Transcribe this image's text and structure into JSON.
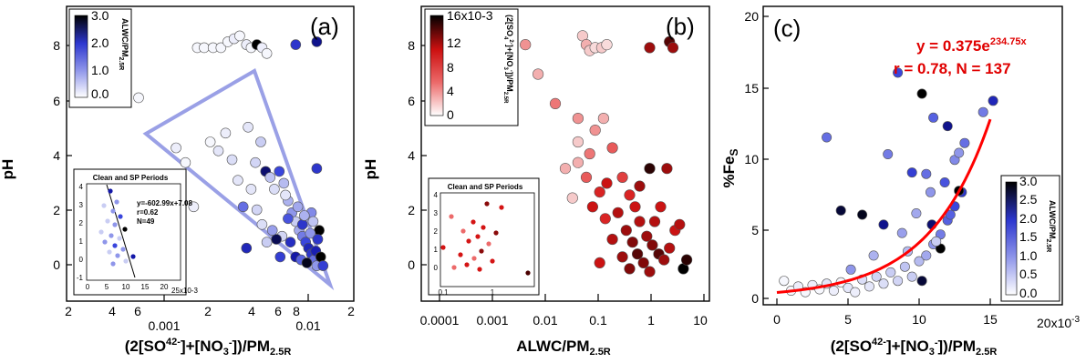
{
  "colors": {
    "blue_scale": [
      "#ffffff",
      "#c9cdf3",
      "#8f96ea",
      "#3a46dc",
      "#1317a8",
      "#000000"
    ],
    "red_scale": [
      "#ffffff",
      "#f5c6c6",
      "#ec6a6a",
      "#d41414",
      "#8a0a0a",
      "#000000"
    ],
    "fit_line": "#ff0000",
    "envelope": "#9aa0e6"
  },
  "panel_a": {
    "letter": "(a)",
    "ylabel": "pH",
    "xlabel": "(2[SO4 2-]+[NO3 -])/PM2.5R",
    "colorbar": {
      "label": "ALWC/PM2.5R",
      "ticks": [
        "3.0",
        "2.0",
        "1.0",
        "0.0"
      ]
    },
    "inset": {
      "title": "Clean and SP Periods",
      "fit": "y=-602.99x+7.08",
      "r": "r=0.62",
      "n": "N=49",
      "xunit": "25x10-3",
      "xticks": [
        "0",
        "5",
        "10",
        "15",
        "20"
      ],
      "yticks": [
        "4",
        "3",
        "2",
        "1",
        "0",
        "-1"
      ]
    }
  },
  "panel_b": {
    "letter": "(b)",
    "ylabel": "pH",
    "xlabel": "ALWC/PM2.5R",
    "colorbar": {
      "label": "(2[SO4 2-]+[NO3 -])/PM2.5R",
      "ticks": [
        "16x10-3",
        "12",
        "8",
        "4",
        "0"
      ]
    },
    "inset": {
      "title": "Clean and SP Periods",
      "xticks": [
        "0.1",
        "1"
      ],
      "yticks": [
        "4",
        "3",
        "2",
        "1",
        "0"
      ]
    }
  },
  "panel_c": {
    "letter": "(c)",
    "ylabel": "%FeS",
    "xlabel": "(2[SO4 2-]+[NO3 -])/PM2.5R",
    "xunit": "20x10-3",
    "fit_equation": "y = 0.375e234.75x",
    "fit_stats": "r = 0.78, N = 137",
    "colorbar": {
      "label": "ALWC/PM2.5R",
      "ticks": [
        "3.0",
        "2.5",
        "2.0",
        "1.5",
        "1.0",
        "0.5",
        "0.0"
      ]
    }
  },
  "chart_data": [
    {
      "type": "scatter",
      "panel": "a",
      "xscale": "log",
      "xlim": [
        0.0002,
        0.022
      ],
      "ylim": [
        -1.2,
        8.8
      ],
      "xticks_major": [
        "0.001",
        "0.01"
      ],
      "xticks_minor_labels": [
        "2",
        "4",
        "6",
        "2",
        "4",
        "6",
        "8",
        "2"
      ],
      "yticks": [
        "8",
        "6",
        "4",
        "2",
        "0"
      ],
      "color_variable": "ALWC/PM2.5R",
      "color_range": [
        0,
        3
      ],
      "points": [
        {
          "x": 0.0017,
          "y": 7.4,
          "c": 0.1
        },
        {
          "x": 0.0019,
          "y": 7.4,
          "c": 0.1
        },
        {
          "x": 0.0022,
          "y": 7.4,
          "c": 0.1
        },
        {
          "x": 0.0025,
          "y": 7.4,
          "c": 0.1
        },
        {
          "x": 0.0028,
          "y": 7.6,
          "c": 0.1
        },
        {
          "x": 0.0031,
          "y": 7.7,
          "c": 0.2
        },
        {
          "x": 0.0034,
          "y": 7.8,
          "c": 0.1
        },
        {
          "x": 0.0038,
          "y": 7.5,
          "c": 0.2
        },
        {
          "x": 0.0041,
          "y": 7.4,
          "c": 0.1
        },
        {
          "x": 0.0045,
          "y": 7.5,
          "c": 3.0
        },
        {
          "x": 0.0049,
          "y": 7.4,
          "c": 0.2
        },
        {
          "x": 0.0053,
          "y": 7.2,
          "c": 0.1
        },
        {
          "x": 0.0085,
          "y": 7.5,
          "c": 2.0
        },
        {
          "x": 0.012,
          "y": 7.6,
          "c": 2.5
        },
        {
          "x": 0.00065,
          "y": 5.7,
          "c": 0.1
        },
        {
          "x": 0.0012,
          "y": 4.0,
          "c": 0.2
        },
        {
          "x": 0.0014,
          "y": 3.5,
          "c": 0.1
        },
        {
          "x": 0.0016,
          "y": 2.0,
          "c": 0.2
        },
        {
          "x": 0.0021,
          "y": 4.2,
          "c": 0.1
        },
        {
          "x": 0.0024,
          "y": 3.9,
          "c": 0.3
        },
        {
          "x": 0.0027,
          "y": 4.5,
          "c": 0.2
        },
        {
          "x": 0.003,
          "y": 3.6,
          "c": 0.4
        },
        {
          "x": 0.0033,
          "y": 2.9,
          "c": 0.3
        },
        {
          "x": 0.0036,
          "y": 2.0,
          "c": 1.5
        },
        {
          "x": 0.0039,
          "y": 4.7,
          "c": 0.3
        },
        {
          "x": 0.0044,
          "y": 3.5,
          "c": 0.5
        },
        {
          "x": 0.0048,
          "y": 4.2,
          "c": 0.6
        },
        {
          "x": 0.0052,
          "y": 3.2,
          "c": 2.6
        },
        {
          "x": 0.0056,
          "y": 3.0,
          "c": 0.7
        },
        {
          "x": 0.006,
          "y": 2.6,
          "c": 0.4
        },
        {
          "x": 0.0065,
          "y": 3.2,
          "c": 1.8
        },
        {
          "x": 0.007,
          "y": 2.8,
          "c": 0.8
        },
        {
          "x": 0.0075,
          "y": 2.2,
          "c": 0.9
        },
        {
          "x": 0.008,
          "y": 1.8,
          "c": 1.2
        },
        {
          "x": 0.0085,
          "y": 1.5,
          "c": 0.6
        },
        {
          "x": 0.009,
          "y": 1.2,
          "c": 1.0
        },
        {
          "x": 0.0095,
          "y": 1.0,
          "c": 1.4
        },
        {
          "x": 0.01,
          "y": 0.8,
          "c": 1.8
        },
        {
          "x": 0.0105,
          "y": 0.6,
          "c": 2.2
        },
        {
          "x": 0.011,
          "y": 0.4,
          "c": 2.0
        },
        {
          "x": 0.0115,
          "y": 0.2,
          "c": 1.5
        },
        {
          "x": 0.012,
          "y": 0.0,
          "c": 1.2
        },
        {
          "x": 0.0125,
          "y": 1.2,
          "c": 3.0
        },
        {
          "x": 0.0085,
          "y": 0.3,
          "c": 2.4
        },
        {
          "x": 0.0095,
          "y": 1.4,
          "c": 2.0
        },
        {
          "x": 0.011,
          "y": 1.8,
          "c": 1.3
        },
        {
          "x": 0.012,
          "y": 3.3,
          "c": 2.0
        },
        {
          "x": 0.0075,
          "y": 1.6,
          "c": 1.7
        },
        {
          "x": 0.0068,
          "y": 1.0,
          "c": 0.5
        },
        {
          "x": 0.0072,
          "y": 2.4,
          "c": 0.3
        },
        {
          "x": 0.0078,
          "y": 0.8,
          "c": 2.1
        },
        {
          "x": 0.0088,
          "y": 2.0,
          "c": 1.0
        },
        {
          "x": 0.0093,
          "y": 0.2,
          "c": 1.6
        },
        {
          "x": 0.0098,
          "y": 1.7,
          "c": 0.9
        },
        {
          "x": 0.0102,
          "y": 0.1,
          "c": 2.9
        },
        {
          "x": 0.0108,
          "y": 1.1,
          "c": 1.2
        },
        {
          "x": 0.0113,
          "y": 1.5,
          "c": 0.7
        },
        {
          "x": 0.0118,
          "y": 0.5,
          "c": 2.3
        },
        {
          "x": 0.0122,
          "y": 0.9,
          "c": 2.0
        },
        {
          "x": 0.0128,
          "y": 0.3,
          "c": 3.0
        },
        {
          "x": 0.0133,
          "y": 0.0,
          "c": 1.9
        },
        {
          "x": 0.0062,
          "y": 0.9,
          "c": 2.7
        },
        {
          "x": 0.0058,
          "y": 1.2,
          "c": 1.1
        },
        {
          "x": 0.0053,
          "y": 0.8,
          "c": 0.6
        },
        {
          "x": 0.0049,
          "y": 1.4,
          "c": 0.4
        },
        {
          "x": 0.0045,
          "y": 1.9,
          "c": 0.5
        },
        {
          "x": 0.0041,
          "y": 2.6,
          "c": 0.3
        },
        {
          "x": 0.0038,
          "y": 0.6,
          "c": 2.2
        },
        {
          "x": 0.0066,
          "y": 0.3,
          "c": 1.9
        }
      ]
    },
    {
      "type": "scatter",
      "panel": "b",
      "xscale": "log",
      "xlim": [
        9e-05,
        10
      ],
      "ylim": [
        -1.2,
        8.8
      ],
      "xticks": [
        "0.0001",
        "0.001",
        "0.01",
        "0.1",
        "1",
        "10"
      ],
      "yticks": [
        "8",
        "6",
        "4",
        "2",
        "0"
      ],
      "color_variable": "(2[SO4 2-]+[NO3 -])/PM2.5R",
      "color_range": [
        0,
        0.016
      ],
      "points": [
        {
          "x": 0.002,
          "y": 7.4,
          "c": 0.01
        },
        {
          "x": 0.006,
          "y": 7.5,
          "c": 0.005
        },
        {
          "x": 0.06,
          "y": 7.8,
          "c": 0.003
        },
        {
          "x": 0.07,
          "y": 7.5,
          "c": 0.004
        },
        {
          "x": 0.08,
          "y": 7.3,
          "c": 0.003
        },
        {
          "x": 0.1,
          "y": 7.4,
          "c": 0.002
        },
        {
          "x": 0.13,
          "y": 7.4,
          "c": 0.003
        },
        {
          "x": 0.16,
          "y": 7.5,
          "c": 0.002
        },
        {
          "x": 0.9,
          "y": 7.4,
          "c": 0.012
        },
        {
          "x": 2.0,
          "y": 7.6,
          "c": 0.014
        },
        {
          "x": 2.3,
          "y": 7.4,
          "c": 0.012
        },
        {
          "x": 0.01,
          "y": 6.5,
          "c": 0.004
        },
        {
          "x": 0.02,
          "y": 5.5,
          "c": 0.006
        },
        {
          "x": 0.05,
          "y": 4.2,
          "c": 0.003
        },
        {
          "x": 0.05,
          "y": 5.0,
          "c": 0.005
        },
        {
          "x": 0.1,
          "y": 4.6,
          "c": 0.005
        },
        {
          "x": 0.14,
          "y": 5.0,
          "c": 0.004
        },
        {
          "x": 0.2,
          "y": 4.0,
          "c": 0.007
        },
        {
          "x": 0.3,
          "y": 3.0,
          "c": 0.008
        },
        {
          "x": 0.4,
          "y": 2.4,
          "c": 0.009
        },
        {
          "x": 0.5,
          "y": 2.0,
          "c": 0.01
        },
        {
          "x": 0.6,
          "y": 1.5,
          "c": 0.011
        },
        {
          "x": 0.8,
          "y": 1.0,
          "c": 0.012
        },
        {
          "x": 1.0,
          "y": 0.7,
          "c": 0.013
        },
        {
          "x": 1.3,
          "y": 0.4,
          "c": 0.014
        },
        {
          "x": 1.6,
          "y": 0.2,
          "c": 0.012
        },
        {
          "x": 2.0,
          "y": 0.6,
          "c": 0.011
        },
        {
          "x": 2.5,
          "y": 1.2,
          "c": 0.01
        },
        {
          "x": 3.0,
          "y": 1.4,
          "c": 0.011
        },
        {
          "x": 0.05,
          "y": 3.5,
          "c": 0.004
        },
        {
          "x": 0.07,
          "y": 3.0,
          "c": 0.007
        },
        {
          "x": 0.12,
          "y": 2.5,
          "c": 0.009
        },
        {
          "x": 0.16,
          "y": 2.8,
          "c": 0.01
        },
        {
          "x": 0.25,
          "y": 1.8,
          "c": 0.011
        },
        {
          "x": 0.35,
          "y": 1.2,
          "c": 0.012
        },
        {
          "x": 0.45,
          "y": 0.8,
          "c": 0.013
        },
        {
          "x": 0.55,
          "y": 0.4,
          "c": 0.014
        },
        {
          "x": 0.7,
          "y": 0.1,
          "c": 0.013
        },
        {
          "x": 0.9,
          "y": -0.2,
          "c": 0.012
        },
        {
          "x": 1.1,
          "y": 1.5,
          "c": 0.011
        },
        {
          "x": 1.4,
          "y": 2.0,
          "c": 0.01
        },
        {
          "x": 1.8,
          "y": 3.3,
          "c": 0.012
        },
        {
          "x": 3.5,
          "y": -0.1,
          "c": 0.016
        },
        {
          "x": 4.0,
          "y": 0.2,
          "c": 0.015
        },
        {
          "x": 0.9,
          "y": 3.3,
          "c": 0.015
        },
        {
          "x": 0.3,
          "y": 0.3,
          "c": 0.012
        },
        {
          "x": 0.2,
          "y": 0.9,
          "c": 0.011
        },
        {
          "x": 0.15,
          "y": 1.6,
          "c": 0.009
        },
        {
          "x": 0.09,
          "y": 2.0,
          "c": 0.01
        },
        {
          "x": 0.6,
          "y": 2.7,
          "c": 0.012
        },
        {
          "x": 0.4,
          "y": -0.1,
          "c": 0.013
        },
        {
          "x": 0.12,
          "y": 0.1,
          "c": 0.01
        },
        {
          "x": 0.04,
          "y": 2.3,
          "c": 0.003
        },
        {
          "x": 0.03,
          "y": 3.3,
          "c": 0.004
        },
        {
          "x": 0.08,
          "y": 3.8,
          "c": 0.006
        }
      ]
    },
    {
      "type": "scatter",
      "panel": "c",
      "xlim": [
        0,
        0.02
      ],
      "ylim": [
        -0.5,
        20
      ],
      "xticks": [
        "0",
        "5",
        "10",
        "15"
      ],
      "yticks": [
        "20",
        "15",
        "10",
        "5",
        "0"
      ],
      "color_variable": "ALWC/PM2.5R",
      "color_range": [
        0,
        3
      ],
      "fit": {
        "a": 0.375,
        "b": 234.75,
        "x_range": [
          0,
          0.015
        ]
      },
      "points": [
        {
          "x": 0.0005,
          "y": 1.2,
          "c": 0.1
        },
        {
          "x": 0.001,
          "y": 0.5,
          "c": 0.1
        },
        {
          "x": 0.0015,
          "y": 0.8,
          "c": 0.2
        },
        {
          "x": 0.002,
          "y": 0.4,
          "c": 0.1
        },
        {
          "x": 0.0025,
          "y": 0.9,
          "c": 0.2
        },
        {
          "x": 0.003,
          "y": 0.6,
          "c": 0.1
        },
        {
          "x": 0.0035,
          "y": 1.0,
          "c": 0.3
        },
        {
          "x": 0.004,
          "y": 0.5,
          "c": 0.2
        },
        {
          "x": 0.0045,
          "y": 1.1,
          "c": 0.1
        },
        {
          "x": 0.005,
          "y": 0.7,
          "c": 0.3
        },
        {
          "x": 0.0055,
          "y": 0.4,
          "c": 0.2
        },
        {
          "x": 0.006,
          "y": 1.3,
          "c": 0.4
        },
        {
          "x": 0.0065,
          "y": 0.8,
          "c": 0.3
        },
        {
          "x": 0.007,
          "y": 1.5,
          "c": 0.5
        },
        {
          "x": 0.0075,
          "y": 1.0,
          "c": 0.4
        },
        {
          "x": 0.008,
          "y": 1.8,
          "c": 0.6
        },
        {
          "x": 0.0085,
          "y": 1.2,
          "c": 0.5
        },
        {
          "x": 0.009,
          "y": 2.2,
          "c": 0.7
        },
        {
          "x": 0.0095,
          "y": 1.5,
          "c": 0.6
        },
        {
          "x": 0.01,
          "y": 2.6,
          "c": 0.8
        },
        {
          "x": 0.0105,
          "y": 3.0,
          "c": 1.0
        },
        {
          "x": 0.011,
          "y": 3.8,
          "c": 1.2
        },
        {
          "x": 0.0115,
          "y": 4.5,
          "c": 1.4
        },
        {
          "x": 0.012,
          "y": 5.5,
          "c": 1.6
        },
        {
          "x": 0.0125,
          "y": 6.5,
          "c": 1.8
        },
        {
          "x": 0.013,
          "y": 7.5,
          "c": 2.0
        },
        {
          "x": 0.0035,
          "y": 11.4,
          "c": 1.5
        },
        {
          "x": 0.0045,
          "y": 6.2,
          "c": 2.8
        },
        {
          "x": 0.006,
          "y": 5.9,
          "c": 2.9
        },
        {
          "x": 0.0075,
          "y": 5.2,
          "c": 2.5
        },
        {
          "x": 0.0078,
          "y": 10.2,
          "c": 1.4
        },
        {
          "x": 0.0085,
          "y": 16.0,
          "c": 1.8
        },
        {
          "x": 0.0095,
          "y": 8.9,
          "c": 1.9
        },
        {
          "x": 0.0102,
          "y": 14.5,
          "c": 3.0
        },
        {
          "x": 0.0105,
          "y": 8.8,
          "c": 1.5
        },
        {
          "x": 0.011,
          "y": 12.8,
          "c": 1.6
        },
        {
          "x": 0.0115,
          "y": 3.5,
          "c": 3.0
        },
        {
          "x": 0.012,
          "y": 12.2,
          "c": 2.5
        },
        {
          "x": 0.0125,
          "y": 9.8,
          "c": 1.3
        },
        {
          "x": 0.0128,
          "y": 7.6,
          "c": 3.0
        },
        {
          "x": 0.0145,
          "y": 13.2,
          "c": 1.4
        },
        {
          "x": 0.0152,
          "y": 14.0,
          "c": 2.2
        },
        {
          "x": 0.0108,
          "y": 7.5,
          "c": 1.2
        },
        {
          "x": 0.0098,
          "y": 6.0,
          "c": 1.0
        },
        {
          "x": 0.0112,
          "y": 4.0,
          "c": 0.6
        },
        {
          "x": 0.0118,
          "y": 8.2,
          "c": 1.7
        },
        {
          "x": 0.0092,
          "y": 3.3,
          "c": 0.8
        },
        {
          "x": 0.0088,
          "y": 4.6,
          "c": 1.1
        },
        {
          "x": 0.0068,
          "y": 3.0,
          "c": 0.9
        },
        {
          "x": 0.0052,
          "y": 2.0,
          "c": 1.2
        },
        {
          "x": 0.0102,
          "y": 1.2,
          "c": 2.8
        },
        {
          "x": 0.0109,
          "y": 5.2,
          "c": 2.6
        },
        {
          "x": 0.0122,
          "y": 5.9,
          "c": 1.6
        },
        {
          "x": 0.0128,
          "y": 10.3,
          "c": 1.2
        },
        {
          "x": 0.0132,
          "y": 11.0,
          "c": 1.5
        }
      ]
    }
  ]
}
